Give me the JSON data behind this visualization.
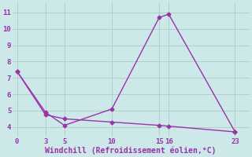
{
  "line1_x": [
    0,
    3,
    5,
    10,
    15,
    16,
    23
  ],
  "line1_y": [
    7.4,
    4.9,
    4.1,
    5.1,
    10.7,
    10.9,
    3.7
  ],
  "line2_x": [
    0,
    3,
    5,
    10,
    15,
    16,
    23
  ],
  "line2_y": [
    7.4,
    4.75,
    4.5,
    4.3,
    4.1,
    4.05,
    3.7
  ],
  "line_color": "#9933aa",
  "bg_color": "#cce8e8",
  "grid_color": "#b0d0c8",
  "xlabel": "Windchill (Refroidissement éolien,°C)",
  "xticks": [
    0,
    3,
    5,
    10,
    15,
    16,
    23
  ],
  "yticks": [
    4,
    5,
    6,
    7,
    8,
    9,
    10,
    11
  ],
  "xlim": [
    -0.5,
    24.5
  ],
  "ylim": [
    3.4,
    11.6
  ],
  "xlabel_color": "#9933aa",
  "tick_color": "#9933aa",
  "markersize": 2.5,
  "linewidth": 1.0
}
